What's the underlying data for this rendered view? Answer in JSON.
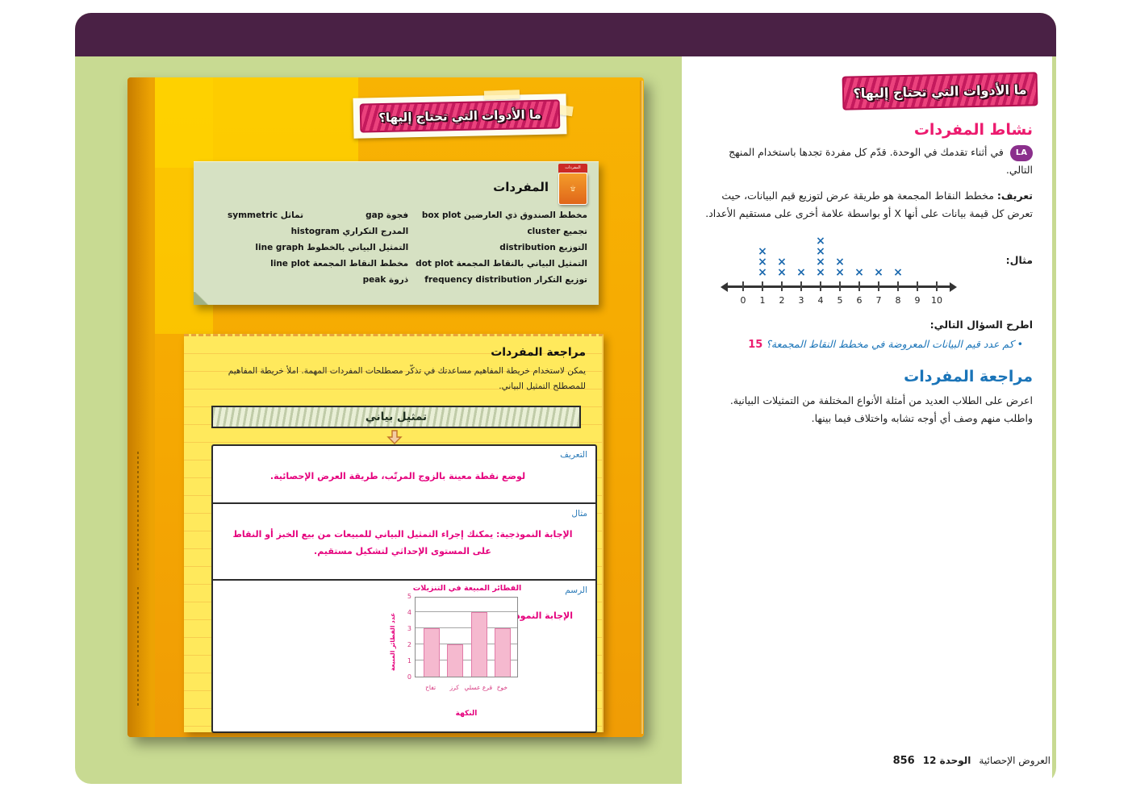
{
  "page_banner_title": "ما الأدوات التي تحتاج إليها؟",
  "left_page": {
    "vocab_note": {
      "tab_label": "المفردات",
      "heading": "المفردات",
      "col_right": [
        "مخطط الصندوق ذي العارضين box plot",
        "تجميع cluster",
        "التوزيع distribution",
        "التمثيل البياني بالنقاط المجمعة dot plot",
        "توزيع التكرار frequency distribution"
      ],
      "row1_left_a": "فجوة gap",
      "row1_left_b": "تماثل symmetric",
      "col_left": [
        "المدرج التكراري histogram",
        "التمثيل البياني بالخطوط line graph",
        "مخطط النقاط المجمعة line plot",
        "ذروة peak"
      ]
    },
    "review": {
      "heading": "مراجعة المفردات",
      "intro": "يمكن لاستخدام خريطة المفاهيم مساعدتك في تذكّر مصطلحات المفردات المهمة. املأ خريطة المفاهيم للمصطلح التمثيل البياني.",
      "map_title": "تمثيل بياني",
      "def_label": "التعريف",
      "def_text": "لوضع نقطة معينة بالزوج المرتّب، طريقة العرض الإحصائية.",
      "example_label": "مثال",
      "example_text": "الإجابة النموذجية: يمكنك إجراء التمثيل البياني للمبيعات من بيع الخبز أو النقاط على المستوى الإحداثي لتشكيل مستقيم.",
      "draw_label": "الرسم",
      "draw_answer_label": "الإجابة النموذجية:"
    }
  },
  "right_panel": {
    "banner_title": "ما الأدوات التي تحتاج إليها؟",
    "activity_heading": "نشاط المفردات",
    "la_badge": "LA",
    "activity_text": "في أثناء تقدمك في الوحدة. قدّم كل مفردة تجدها باستخدام المنهج التالي.",
    "definition_label": "تعريف:",
    "definition_text": "مخطط النقاط المجمعة هو طريقة عرض لتوزيع قيم البيانات، حيث تعرض كل قيمة بيانات على أنها X أو بواسطة علامة أخرى على مستقيم الأعداد.",
    "example_label": "مثال:",
    "ask_heading": "اطرح السؤال التالي:",
    "question": "• كم عدد قيم البيانات المعروضة في مخطط النقاط المجمعة؟",
    "answer": "15",
    "review_heading": "مراجعة المفردات",
    "review_text": "اعرض على الطلاب العديد من أمثلة الأنواع المختلفة من التمثيلات البيانية. واطلب منهم وصف أي أوجه تشابه واختلاف فيما بينها."
  },
  "footer": {
    "page_number": "856",
    "unit_label": "الوحدة 12",
    "unit_title": "العروض الإحصائية"
  },
  "colors": {
    "accent_pink": "#ec1a6e",
    "accent_blue": "#1a74b8",
    "banner_pink": "#e73371",
    "purple_bar": "#4a2145",
    "page_orange": "#f5a802",
    "notepad_yellow": "#ffe95c",
    "sticky_green": "#d6e1c3",
    "dot_x_blue": "#1b69ae"
  },
  "chart_data": [
    {
      "type": "scatter",
      "subtype": "dot-plot",
      "title": "مثال: مخطط النقاط المجمعة",
      "x_ticks": [
        0,
        1,
        2,
        3,
        4,
        5,
        6,
        7,
        8,
        9,
        10
      ],
      "points": [
        [
          1,
          3
        ],
        [
          2,
          2
        ],
        [
          3,
          1
        ],
        [
          4,
          4
        ],
        [
          5,
          2
        ],
        [
          6,
          1
        ],
        [
          7,
          1
        ],
        [
          8,
          1
        ]
      ],
      "marker": "X",
      "total_data_values": 15,
      "xlim": [
        0,
        10
      ]
    },
    {
      "type": "bar",
      "title": "الفطائر المبيعة في التنزيلات",
      "categories": [
        "تفاح",
        "كرز",
        "قرع عسلي",
        "خوخ"
      ],
      "values": [
        3,
        2,
        4,
        3
      ],
      "xlabel": "النكهة",
      "ylabel": "عدد الفطائر المبيعة",
      "ylim": [
        0,
        5
      ],
      "yticks": [
        0,
        1,
        2,
        3,
        4,
        5
      ],
      "grid": true
    }
  ]
}
